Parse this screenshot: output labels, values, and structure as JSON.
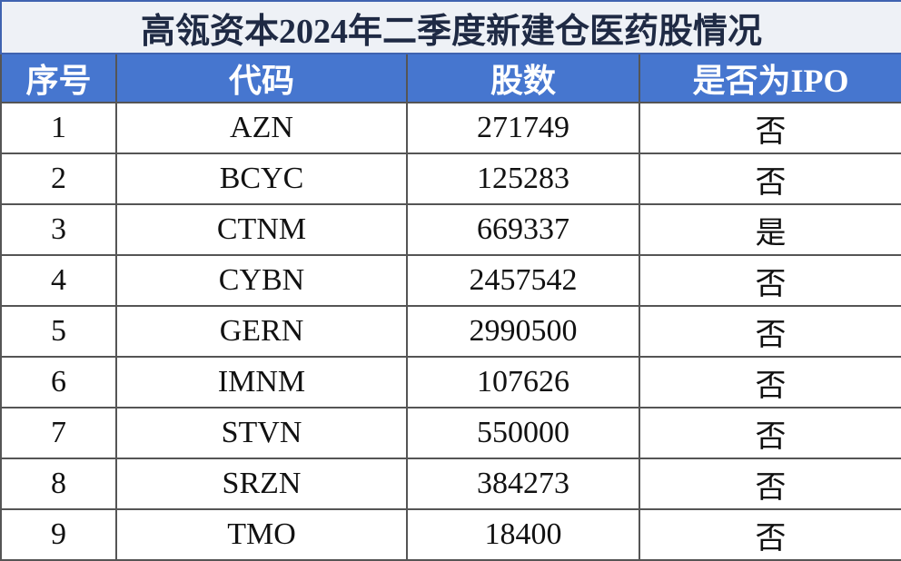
{
  "header": {
    "title": "高瓴资本2024年二季度新建仓医药股情况"
  },
  "table": {
    "columns": [
      "序号",
      "代码",
      "股数",
      "是否为IPO"
    ],
    "rows": [
      [
        1,
        "AZN",
        271749,
        "否"
      ],
      [
        2,
        "BCYC",
        125283,
        "否"
      ],
      [
        3,
        "CTNM",
        669337,
        "是"
      ],
      [
        4,
        "CYBN",
        2457542,
        "否"
      ],
      [
        5,
        "GERN",
        2990500,
        "否"
      ],
      [
        6,
        "IMNM",
        107626,
        "否"
      ],
      [
        7,
        "STVN",
        550000,
        "否"
      ],
      [
        8,
        "SRZN",
        384273,
        "否"
      ],
      [
        9,
        "TMO",
        18400,
        "否"
      ]
    ]
  }
}
